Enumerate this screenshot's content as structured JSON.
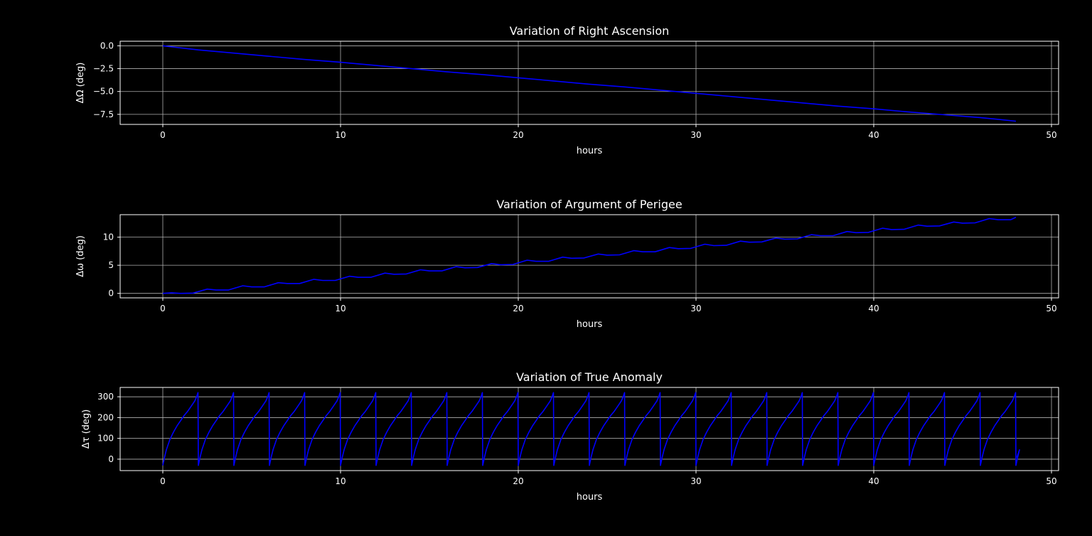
{
  "chart_data": [
    {
      "type": "line",
      "title": "Variation of Right Ascension",
      "xlabel": "hours",
      "ylabel": "ΔΩ (deg)",
      "xlim": [
        -2.4,
        50.4
      ],
      "ylim": [
        -8.6,
        0.5
      ],
      "xticks": [
        0,
        10,
        20,
        30,
        40,
        50
      ],
      "yticks": [
        0.0,
        -2.5,
        -5.0,
        -7.5
      ],
      "ytick_labels": [
        "0.0",
        "−2.5",
        "−5.0",
        "−7.5"
      ],
      "grid": true,
      "color": "#0000ff",
      "series": [
        {
          "x": [
            0,
            2,
            4,
            6,
            8,
            10,
            12,
            14,
            16,
            18,
            20,
            22,
            24,
            26,
            28,
            30,
            32,
            34,
            36,
            38,
            40,
            42,
            44,
            46,
            48
          ],
          "values": [
            0.0,
            -0.45,
            -0.8,
            -1.15,
            -1.5,
            -1.8,
            -2.15,
            -2.5,
            -2.85,
            -3.15,
            -3.5,
            -3.85,
            -4.2,
            -4.5,
            -4.85,
            -5.2,
            -5.55,
            -5.9,
            -6.25,
            -6.6,
            -6.9,
            -7.25,
            -7.55,
            -7.85,
            -8.25
          ]
        }
      ]
    },
    {
      "type": "line",
      "title": "Variation of Argument of Perigee",
      "xlabel": "hours",
      "ylabel": "Δω (deg)",
      "xlim": [
        -2.4,
        50.4
      ],
      "ylim": [
        -0.8,
        14.0
      ],
      "xticks": [
        0,
        10,
        20,
        30,
        40,
        50
      ],
      "yticks": [
        0,
        5,
        10
      ],
      "ytick_labels": [
        "0",
        "5",
        "10"
      ],
      "grid": true,
      "color": "#0000ff",
      "series": [
        {
          "x": [
            0,
            0.5,
            1.0,
            1.7,
            2.5,
            3.0,
            3.7,
            4.5,
            5.0,
            5.7,
            6.5,
            7.0,
            7.7,
            8.5,
            9.0,
            9.7,
            10.5,
            11.0,
            11.7,
            12.5,
            13.0,
            13.7,
            14.5,
            15.0,
            15.7,
            16.5,
            17.0,
            17.7,
            18.5,
            19.0,
            19.7,
            20.5,
            21.0,
            21.7,
            22.5,
            23.0,
            23.7,
            24.5,
            25.0,
            25.7,
            26.5,
            27.0,
            27.7,
            28.5,
            29.0,
            29.7,
            30.5,
            31.0,
            31.7,
            32.5,
            33.0,
            33.7,
            34.5,
            35.0,
            35.7,
            36.5,
            37.0,
            37.7,
            38.5,
            39.0,
            39.7,
            40.5,
            41.0,
            41.7,
            42.5,
            43.0,
            43.7,
            44.5,
            45.0,
            45.7,
            46.5,
            47.0,
            47.7,
            48.0
          ],
          "values": [
            0.0,
            0.1,
            0.0,
            0.05,
            0.75,
            0.6,
            0.6,
            1.35,
            1.15,
            1.15,
            1.9,
            1.75,
            1.75,
            2.5,
            2.3,
            2.3,
            3.05,
            2.85,
            2.85,
            3.6,
            3.4,
            3.45,
            4.2,
            4.0,
            4.0,
            4.75,
            4.55,
            4.6,
            5.3,
            5.1,
            5.15,
            5.9,
            5.7,
            5.7,
            6.45,
            6.25,
            6.3,
            7.0,
            6.8,
            6.85,
            7.6,
            7.4,
            7.4,
            8.15,
            7.95,
            8.0,
            8.75,
            8.5,
            8.55,
            9.3,
            9.1,
            9.15,
            9.85,
            9.65,
            9.7,
            10.45,
            10.25,
            10.25,
            11.0,
            10.8,
            10.85,
            11.6,
            11.35,
            11.4,
            12.15,
            11.95,
            12.0,
            12.7,
            12.5,
            12.55,
            13.3,
            13.1,
            13.1,
            13.55
          ]
        }
      ]
    },
    {
      "type": "line",
      "title": "Variation of True Anomaly",
      "xlabel": "hours",
      "ylabel": "Δτ (deg)",
      "xlim": [
        -2.4,
        50.4
      ],
      "ylim": [
        -55,
        345
      ],
      "xticks": [
        0,
        10,
        20,
        30,
        40,
        50
      ],
      "yticks": [
        0,
        100,
        200,
        300
      ],
      "ytick_labels": [
        "0",
        "100",
        "200",
        "300"
      ],
      "grid": true,
      "color": "#0000ff",
      "sawtooth_period_hours": 2.0,
      "cycle_shape": {
        "phase": [
          0,
          0.05,
          0.1,
          0.2,
          0.3,
          0.4,
          0.5,
          0.6,
          0.7,
          0.8,
          0.9,
          0.95,
          0.99,
          1.0
        ],
        "values": [
          -30,
          10,
          45,
          95,
          130,
          160,
          185,
          210,
          230,
          255,
          280,
          300,
          320,
          -30
        ]
      }
    }
  ]
}
